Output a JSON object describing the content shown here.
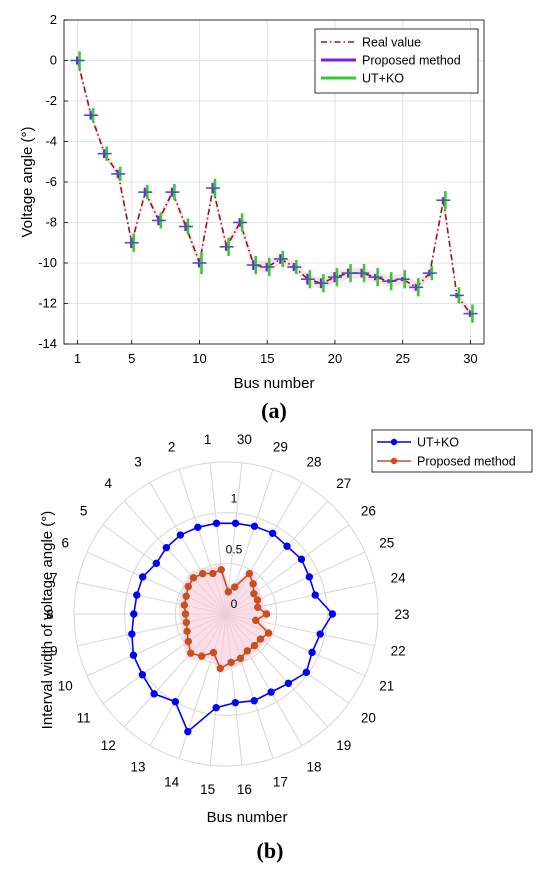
{
  "chart_data": [
    {
      "type": "line",
      "caption": "(a)",
      "xlabel": "Bus number",
      "ylabel": "Voltage angle (°)",
      "xlim": [
        0,
        31
      ],
      "ylim": [
        -14,
        2
      ],
      "xticks": [
        1,
        5,
        10,
        15,
        20,
        25,
        30
      ],
      "yticks": [
        -14,
        -12,
        -10,
        -8,
        -6,
        -4,
        -2,
        0,
        2
      ],
      "grid": true,
      "legend_position": "top-right",
      "x": [
        1,
        2,
        3,
        4,
        5,
        6,
        7,
        8,
        9,
        10,
        11,
        12,
        13,
        14,
        15,
        16,
        17,
        18,
        19,
        20,
        21,
        22,
        23,
        24,
        25,
        26,
        27,
        28,
        29,
        30
      ],
      "series": [
        {
          "name": "Real value",
          "style": "dash-dot",
          "color": "#8B1A1A",
          "values": [
            0,
            -2.7,
            -4.6,
            -5.6,
            -9.0,
            -6.5,
            -7.9,
            -6.5,
            -8.2,
            -10.0,
            -6.3,
            -9.2,
            -8.0,
            -10.1,
            -10.2,
            -9.8,
            -10.2,
            -10.8,
            -11.0,
            -10.7,
            -10.5,
            -10.5,
            -10.7,
            -10.9,
            -10.8,
            -11.2,
            -10.5,
            -6.9,
            -11.6,
            -12.5
          ]
        },
        {
          "name": "Proposed method",
          "style": "interval",
          "color": "#7B22CC",
          "halfwidth": [
            0.2,
            0.22,
            0.22,
            0.2,
            0.26,
            0.22,
            0.24,
            0.22,
            0.22,
            0.22,
            0.26,
            0.2,
            0.21,
            0.24,
            0.21,
            0.24,
            0.2,
            0.27,
            0.24,
            0.25,
            0.22,
            0.21,
            0.15,
            0.1,
            0.1,
            0.17,
            0.15,
            0.15,
            0.12,
            0.16
          ]
        },
        {
          "name": "UT+KO",
          "style": "interval",
          "color": "#33CC33",
          "halfwidth": [
            0.45,
            0.35,
            0.35,
            0.35,
            0.45,
            0.35,
            0.4,
            0.4,
            0.4,
            0.55,
            0.45,
            0.45,
            0.45,
            0.45,
            0.45,
            0.4,
            0.35,
            0.45,
            0.45,
            0.45,
            0.45,
            0.45,
            0.45,
            0.45,
            0.45,
            0.45,
            0.35,
            0.45,
            0.4,
            0.45
          ]
        }
      ]
    },
    {
      "type": "radar",
      "caption": "(b)",
      "xlabel": "Bus number",
      "ylabel": "Interval width of voltage angle (°)",
      "rlim": [
        0,
        1.5
      ],
      "rticks": [
        0,
        0.5,
        1
      ],
      "rtick_labels": [
        "0",
        "0.5",
        "1"
      ],
      "categories": [
        "1",
        "2",
        "3",
        "4",
        "5",
        "6",
        "7",
        "8",
        "9",
        "10",
        "11",
        "12",
        "13",
        "14",
        "15",
        "16",
        "17",
        "18",
        "19",
        "20",
        "21",
        "22",
        "23",
        "24",
        "25",
        "26",
        "27",
        "28",
        "29",
        "30"
      ],
      "legend_position": "top-right",
      "series": [
        {
          "name": "UT+KO",
          "color": "#0000FF",
          "marker": "circle",
          "values": [
            0.9,
            0.9,
            0.9,
            0.88,
            0.85,
            0.9,
            0.9,
            0.91,
            0.95,
            1.0,
            1.02,
            1.06,
            1.0,
            1.22,
            0.93,
            0.88,
            0.9,
            0.89,
            0.92,
            0.98,
            0.93,
            0.95,
            1.05,
            0.9,
            0.9,
            0.92,
            0.9,
            0.92,
            0.91,
            0.9
          ]
        },
        {
          "name": "Proposed method",
          "color": "#C8501E",
          "marker": "circle",
          "values": [
            0.44,
            0.42,
            0.46,
            0.48,
            0.46,
            0.43,
            0.42,
            0.4,
            0.4,
            0.42,
            0.46,
            0.52,
            0.48,
            0.4,
            0.54,
            0.48,
            0.46,
            0.42,
            0.42,
            0.42,
            0.46,
            0.3,
            0.4,
            0.32,
            0.34,
            0.34,
            0.4,
            0.46,
            0.28,
            0.22
          ]
        }
      ]
    }
  ]
}
